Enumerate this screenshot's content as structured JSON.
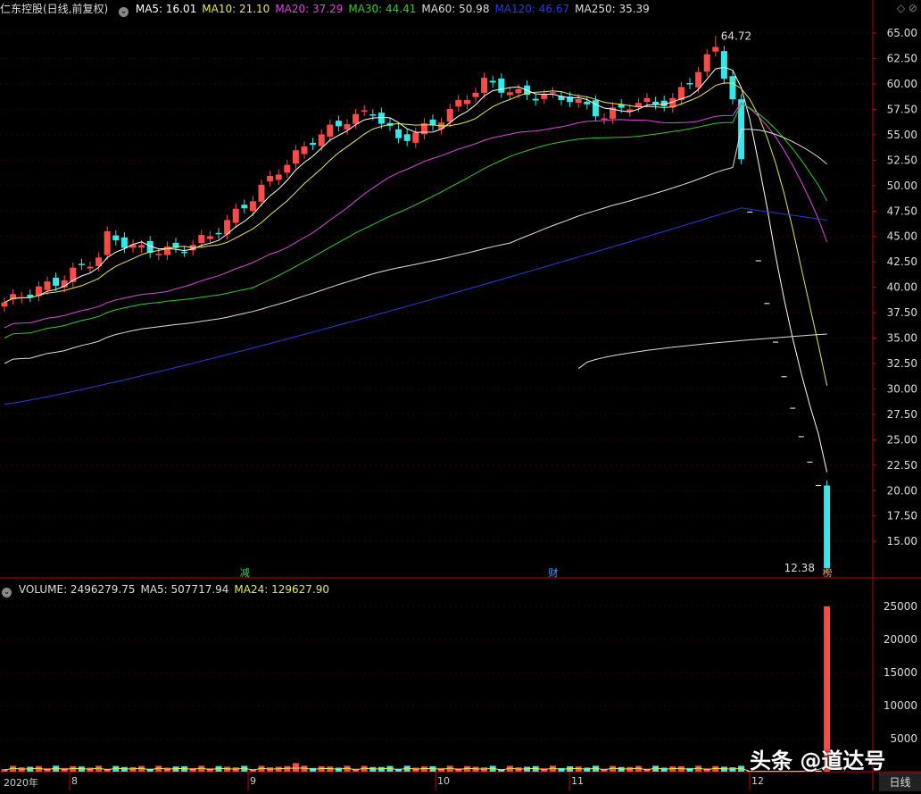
{
  "price_header": {
    "title": "仁东控股(日线,前复权)",
    "items": [
      {
        "label": "MA5: 16.01",
        "color": "#ffffff"
      },
      {
        "label": "MA10: 21.10",
        "color": "#e6e65a"
      },
      {
        "label": "MA20: 37.29",
        "color": "#d84ad8"
      },
      {
        "label": "MA30: 44.41",
        "color": "#34c834"
      },
      {
        "label": "MA60: 50.98",
        "color": "#dddddd"
      },
      {
        "label": "MA120: 46.67",
        "color": "#2a3bd9"
      },
      {
        "label": "MA250: 35.39",
        "color": "#dddddd"
      }
    ]
  },
  "volume_header": {
    "items": [
      {
        "label": "VOLUME: 2496279.75",
        "color": "#dddddd"
      },
      {
        "label": "MA5: 507717.94",
        "color": "#dddddd"
      },
      {
        "label": "MA24: 129627.90",
        "color": "#e6e65a"
      }
    ]
  },
  "chart_data": [
    {
      "type": "candlestick",
      "title": "仁东控股(日线,前复权)",
      "y_ticks": [
        "65.00",
        "62.50",
        "60.00",
        "57.50",
        "55.00",
        "52.50",
        "50.00",
        "47.50",
        "45.00",
        "42.50",
        "40.00",
        "37.50",
        "35.00",
        "32.50",
        "30.00",
        "27.50",
        "25.00",
        "22.50",
        "20.00",
        "17.50",
        "15.00"
      ],
      "ylim": [
        11.5,
        66.5
      ],
      "annotations": [
        {
          "text": "64.72",
          "note": "high"
        },
        {
          "text": "12.38",
          "note": "low"
        }
      ],
      "event_tags": [
        {
          "text": "减",
          "color": "#31d25a"
        },
        {
          "text": "财",
          "color": "#3ea0ff"
        },
        {
          "text": "榜",
          "color": "#ff8c40"
        }
      ],
      "colors": {
        "up": "#ff4a4a",
        "down": "#35e7e7"
      }
    },
    {
      "type": "bar",
      "title": "VOLUME",
      "y_ticks": [
        "25000",
        "20000",
        "15000",
        "10000",
        "5000"
      ],
      "ylim": [
        0,
        27000
      ]
    }
  ],
  "x_labels": [
    "2020年",
    "8",
    "9",
    "10",
    "11",
    "12"
  ],
  "corner_icons": "◇ ⊘",
  "period_button": "日线",
  "watermark": "头条 @道达号"
}
